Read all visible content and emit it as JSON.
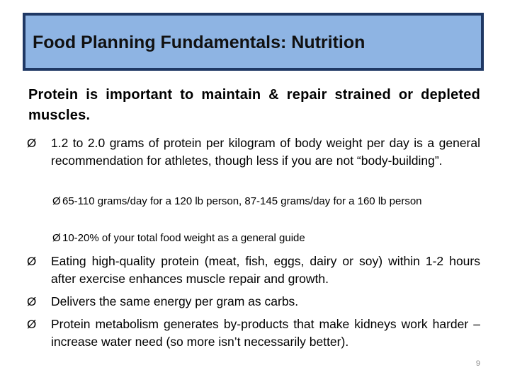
{
  "title": "Food Planning Fundamentals:  Nutrition",
  "intro": "Protein is important to maintain & repair strained or depleted muscles.",
  "arrow_glyph": "Ø",
  "bullets": {
    "b1": "1.2 to 2.0 grams of protein per kilogram of body weight per day is a general recommendation for athletes, though less if you are not “body-building”.",
    "s1": "65-110 grams/day for a 120 lb person, 87-145 grams/day for a 160 lb person",
    "s2": "10-20% of your total food weight as a general guide",
    "b2": " Eating high-quality protein (meat, fish, eggs, dairy or soy) within 1-2 hours after exercise enhances muscle repair and growth.",
    "b3": "Delivers the same energy per gram as carbs.",
    "b4": "Protein metabolism generates by-products that make kidneys work harder – increase water need (so more isn’t necessarily better)."
  },
  "page_number": "9",
  "colors": {
    "title_fill": "#8eb4e3",
    "title_border": "#1f3864"
  }
}
